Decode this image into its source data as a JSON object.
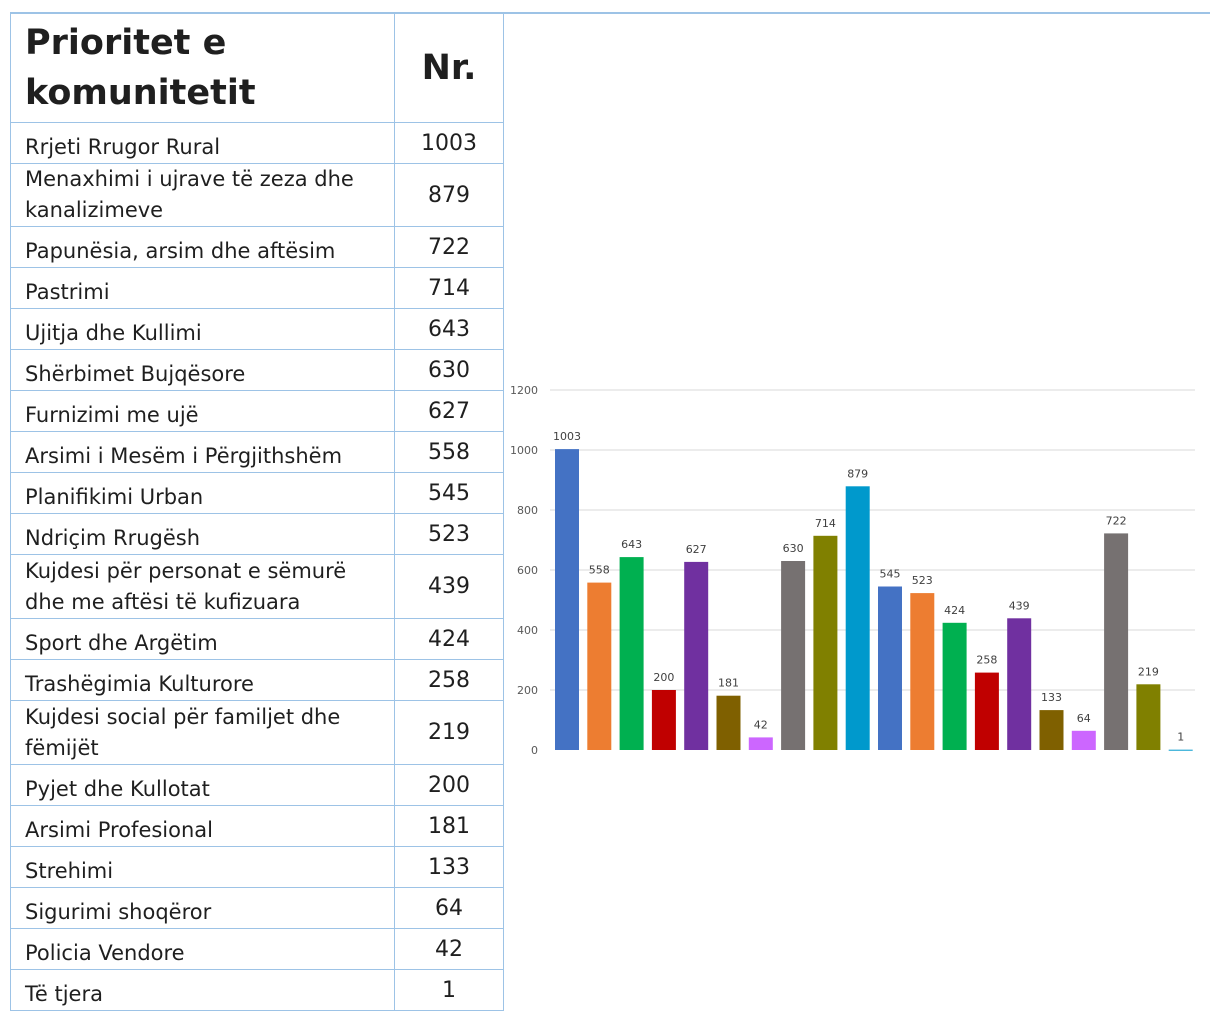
{
  "table": {
    "header_name": "Prioritet e komunitetit",
    "header_num": "Nr.",
    "rows": [
      {
        "name": "Rrjeti Rrugor Rural",
        "num": "1003"
      },
      {
        "name": "Menaxhimi i ujrave të zeza dhe kanalizimeve",
        "num": "879"
      },
      {
        "name": "Papunësia, arsim dhe aftësim",
        "num": "722"
      },
      {
        "name": "Pastrimi",
        "num": "714"
      },
      {
        "name": "Ujitja dhe Kullimi",
        "num": "643"
      },
      {
        "name": "Shërbimet Bujqësore",
        "num": "630"
      },
      {
        "name": "Furnizimi me ujë",
        "num": "627"
      },
      {
        "name": "Arsimi i Mesëm i Përgjithshëm",
        "num": "558"
      },
      {
        "name": "Planifikimi Urban",
        "num": "545"
      },
      {
        "name": "Ndriçim Rrugësh",
        "num": "523"
      },
      {
        "name": "Kujdesi për personat e sëmurë dhe me aftësi të kufizuara",
        "num": "439"
      },
      {
        "name": "Sport dhe Argëtim",
        "num": "424"
      },
      {
        "name": "Trashëgimia Kulturore",
        "num": "258"
      },
      {
        "name": "Kujdesi social për familjet dhe fëmijët",
        "num": "219"
      },
      {
        "name": "Pyjet dhe Kullotat",
        "num": "200"
      },
      {
        "name": "Arsimi Profesional",
        "num": "181"
      },
      {
        "name": "Strehimi",
        "num": "133"
      },
      {
        "name": "Sigurimi shoqëror",
        "num": "64"
      },
      {
        "name": "Policia Vendore",
        "num": "42"
      },
      {
        "name": "Të tjera",
        "num": "1"
      }
    ]
  },
  "chart_data": {
    "type": "bar",
    "values": [
      1003,
      558,
      643,
      200,
      627,
      181,
      42,
      630,
      714,
      879,
      545,
      523,
      424,
      258,
      439,
      133,
      64,
      722,
      219,
      1
    ],
    "colors": [
      "#4472c4",
      "#ed7d31",
      "#00b050",
      "#c00000",
      "#7030a0",
      "#7f6000",
      "#cc66ff",
      "#767171",
      "#808000",
      "#0099cc",
      "#4472c4",
      "#ed7d31",
      "#00b050",
      "#c00000",
      "#7030a0",
      "#7f6000",
      "#cc66ff",
      "#767171",
      "#808000",
      "#0099cc"
    ],
    "yticks": [
      0,
      200,
      400,
      600,
      800,
      1000,
      1200
    ],
    "ylim": [
      0,
      1200
    ],
    "grid": true,
    "data_labels": true,
    "legend": "none"
  }
}
